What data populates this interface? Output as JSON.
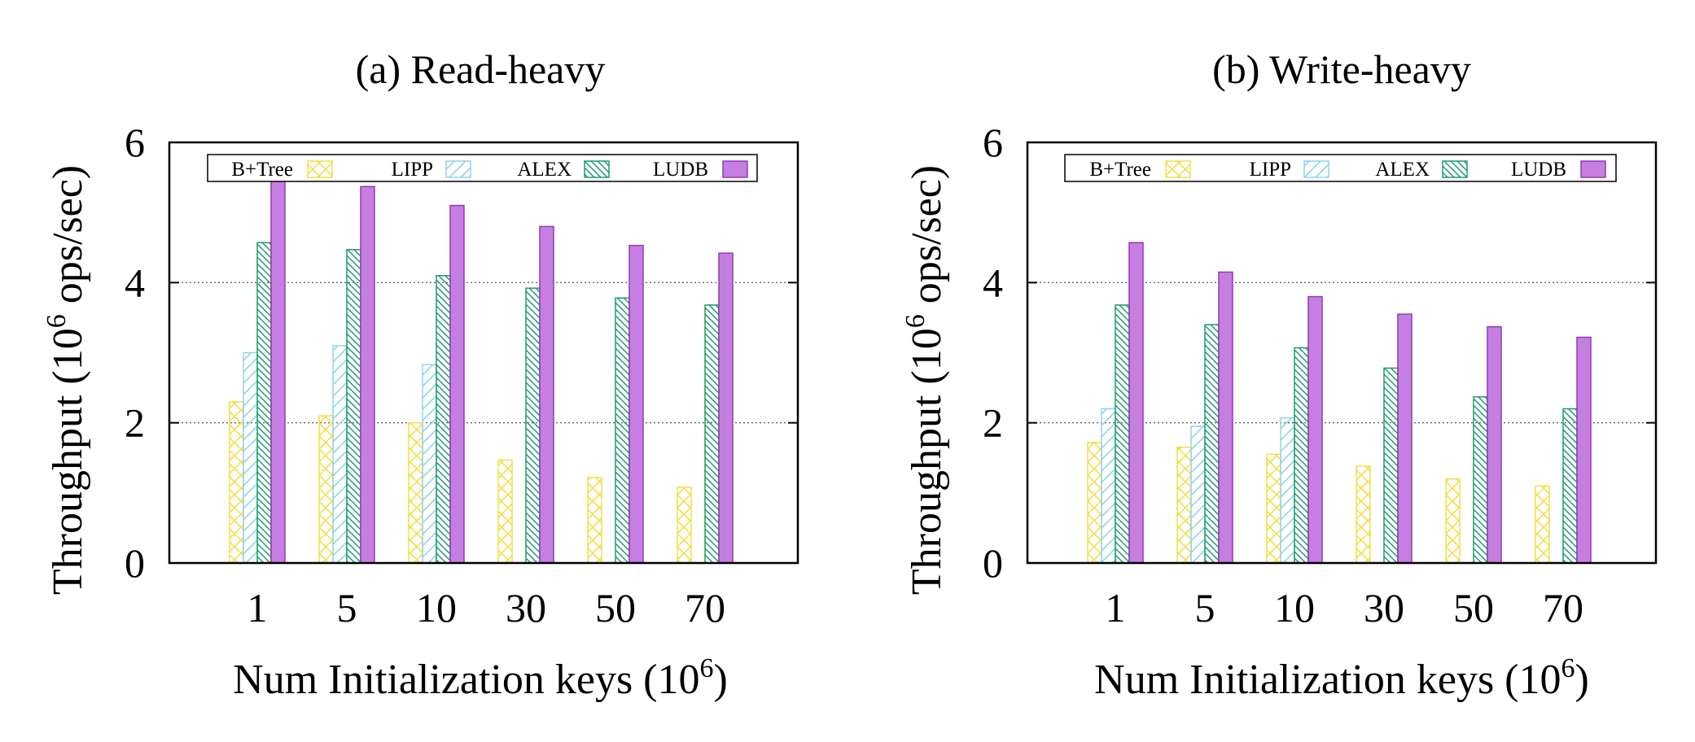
{
  "colors": {
    "B+Tree": "#f2df4a",
    "LIPP": "#8fd3ee",
    "ALEX": "#1f9a6e",
    "LUDB": "#c77ee3",
    "LUDB_stroke": "#8a3fb0",
    "grid": "#444444"
  },
  "chart_data": [
    {
      "type": "bar",
      "title": "(a) Read-heavy",
      "ylabel": "Throughput (10^6 ops/sec)",
      "ylabel_main": "Throughput (10",
      "ylabel_sup": "6",
      "ylabel_tail": " ops/sec)",
      "xlabel": "Num Initialization keys (10^6)",
      "xlabel_main": "Num Initialization keys (10",
      "xlabel_sup": "6",
      "xlabel_tail": ")",
      "categories": [
        "1",
        "5",
        "10",
        "30",
        "50",
        "70"
      ],
      "ylim": [
        0,
        6
      ],
      "yticks": [
        0,
        2,
        4,
        6
      ],
      "grid": true,
      "legend_position": "top",
      "series": [
        {
          "name": "B+Tree",
          "pattern": "crosshatch",
          "values": [
            2.3,
            2.1,
            2.0,
            1.47,
            1.22,
            1.08
          ]
        },
        {
          "name": "LIPP",
          "pattern": "forward-diagonal",
          "values": [
            3.0,
            3.1,
            2.83,
            0,
            0,
            0
          ]
        },
        {
          "name": "ALEX",
          "pattern": "back-diagonal",
          "values": [
            4.57,
            4.47,
            4.1,
            3.92,
            3.78,
            3.68
          ]
        },
        {
          "name": "LUDB",
          "pattern": "solid",
          "values": [
            5.57,
            5.37,
            5.1,
            4.8,
            4.53,
            4.42
          ]
        }
      ]
    },
    {
      "type": "bar",
      "title": "(b) Write-heavy",
      "ylabel": "Throughput (10^6 ops/sec)",
      "ylabel_main": "Throughput (10",
      "ylabel_sup": "6",
      "ylabel_tail": " ops/sec)",
      "xlabel": "Num Initialization keys (10^6)",
      "xlabel_main": "Num Initialization keys (10",
      "xlabel_sup": "6",
      "xlabel_tail": ")",
      "categories": [
        "1",
        "5",
        "10",
        "30",
        "50",
        "70"
      ],
      "ylim": [
        0,
        6
      ],
      "yticks": [
        0,
        2,
        4,
        6
      ],
      "grid": true,
      "legend_position": "top",
      "series": [
        {
          "name": "B+Tree",
          "pattern": "crosshatch",
          "values": [
            1.72,
            1.65,
            1.55,
            1.38,
            1.2,
            1.1
          ]
        },
        {
          "name": "LIPP",
          "pattern": "forward-diagonal",
          "values": [
            2.2,
            1.95,
            2.07,
            0,
            0,
            0
          ]
        },
        {
          "name": "ALEX",
          "pattern": "back-diagonal",
          "values": [
            3.68,
            3.4,
            3.07,
            2.78,
            2.37,
            2.2
          ]
        },
        {
          "name": "LUDB",
          "pattern": "solid",
          "values": [
            4.57,
            4.15,
            3.8,
            3.55,
            3.37,
            3.22
          ]
        }
      ]
    }
  ]
}
